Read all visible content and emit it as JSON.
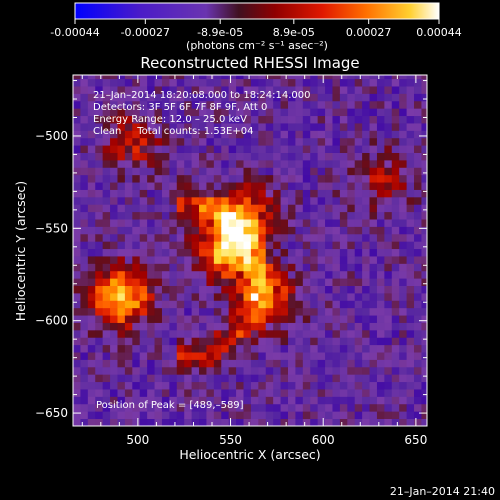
{
  "colorbar": {
    "ticks": [
      "-0.00044",
      "-0.00027",
      "-8.9e-05",
      "8.9e-05",
      "0.00027",
      "0.00044"
    ],
    "tick_values": [
      -0.00044,
      -0.00027,
      -8.9e-05,
      8.9e-05,
      0.00027,
      0.00044
    ],
    "range": [
      -0.00044,
      0.00044
    ],
    "units_line": "(photons cm⁻² s⁻¹ asec⁻²)"
  },
  "chart_data": {
    "type": "heatmap",
    "title": "Reconstructed RHESSI Image",
    "xlabel": "Heliocentric X (arcsec)",
    "ylabel": "Heliocentric Y (arcsec)",
    "xlim": [
      465,
      656
    ],
    "ylim": [
      -657,
      -467
    ],
    "x_ticks": [
      500,
      550,
      600,
      650
    ],
    "x_tick_labels": [
      "500",
      "550",
      "600",
      "650"
    ],
    "y_ticks": [
      -500,
      -550,
      -600,
      -650
    ],
    "y_tick_labels": [
      "−500",
      "−550",
      "−600",
      "−650"
    ],
    "colormap": [
      "#0000ff",
      "#3b00a8",
      "#5a2aa0",
      "#7a3aa8",
      "#5a1020",
      "#a00000",
      "#e02000",
      "#ff6000",
      "#ffa000",
      "#ffe040",
      "#ffffff"
    ],
    "peak": {
      "x": 489,
      "y": -589
    },
    "sources": [
      {
        "x": 489,
        "y": -589,
        "peak": 0.00044
      },
      {
        "x": 545,
        "y": -565,
        "peak": 0.0004
      },
      {
        "x": 555,
        "y": -545,
        "peak": 0.00032
      },
      {
        "x": 570,
        "y": -590,
        "peak": 0.00026
      },
      {
        "x": 495,
        "y": -505,
        "peak": 0.0002
      },
      {
        "x": 630,
        "y": -525,
        "peak": 0.00016
      }
    ]
  },
  "annotations": {
    "line1": "21–Jan–2014 18:20:08.000 to 18:24:14.000",
    "line2": "Detectors: 3F 5F 6F 7F 8F 9F, Att 0",
    "line3": "Energy Range: 12.0 – 25.0 keV",
    "line4": "Clean     Total counts: 1.53E+04",
    "peak_text": "Position of Peak = [489,–589]"
  },
  "timestamp": "21–Jan–2014 21:40"
}
